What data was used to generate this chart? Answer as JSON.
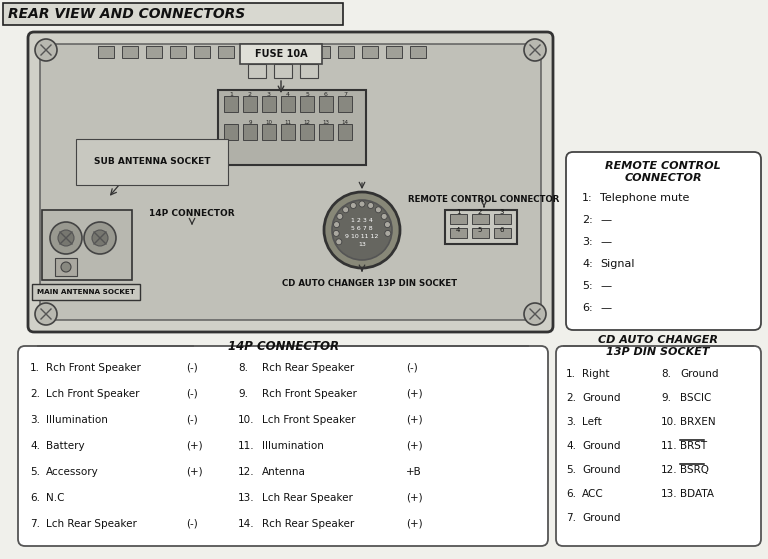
{
  "title": "REAR VIEW AND CONNECTORS",
  "bg_color": "#f0f0eb",
  "remote_control_title1": "REMOTE CONTROL",
  "remote_control_title2": "CONNECTOR",
  "remote_control_items": [
    [
      "1:",
      "Telephone mute"
    ],
    [
      "2:",
      "—"
    ],
    [
      "3:",
      "—"
    ],
    [
      "4:",
      "Signal"
    ],
    [
      "5:",
      "—"
    ],
    [
      "6:",
      "—"
    ]
  ],
  "connector_14p_title": "14P CONNECTOR",
  "left_items": [
    [
      "1.",
      "Rch Front Speaker",
      "(-)"
    ],
    [
      "2.",
      "Lch Front Speaker",
      "(-)"
    ],
    [
      "3.",
      "Illumination",
      "(-)"
    ],
    [
      "4.",
      "Battery",
      "(+)"
    ],
    [
      "5.",
      "Accessory",
      "(+)"
    ],
    [
      "6.",
      "N.C",
      ""
    ],
    [
      "7.",
      "Lch Rear Speaker",
      "(-)"
    ]
  ],
  "right_items": [
    [
      "8.",
      "Rch Rear Speaker",
      "(-)"
    ],
    [
      "9.",
      "Rch Front Speaker",
      "(+)"
    ],
    [
      "10.",
      "Lch Front Speaker",
      "(+)"
    ],
    [
      "11.",
      "Illumination",
      "(+)"
    ],
    [
      "12.",
      "Antenna",
      "+B"
    ],
    [
      "13.",
      "Lch Rear Speaker",
      "(+)"
    ],
    [
      "14.",
      "Rch Rear Speaker",
      "(+)"
    ]
  ],
  "cd_title1": "CD AUTO CHANGER",
  "cd_title2": "13P DIN SOCKET",
  "cd_left": [
    [
      "1.",
      "Right"
    ],
    [
      "2.",
      "Ground"
    ],
    [
      "3.",
      "Left"
    ],
    [
      "4.",
      "Ground"
    ],
    [
      "5.",
      "Ground"
    ],
    [
      "6.",
      "ACC"
    ],
    [
      "7.",
      "Ground"
    ]
  ],
  "cd_right": [
    [
      "8.",
      "Ground",
      false
    ],
    [
      "9.",
      "BSCIC",
      false
    ],
    [
      "10.",
      "BRXEN",
      false
    ],
    [
      "11.",
      "BRST",
      true
    ],
    [
      "12.",
      "BSRQ",
      true
    ],
    [
      "13.",
      "BDATA",
      false
    ]
  ]
}
